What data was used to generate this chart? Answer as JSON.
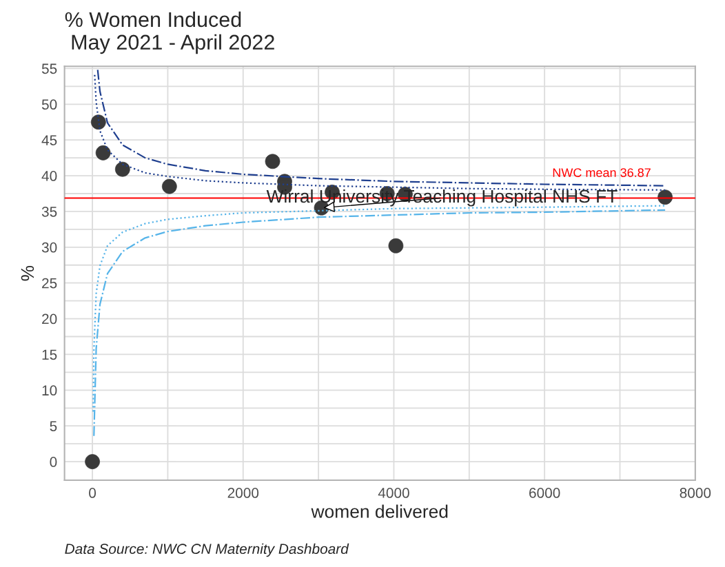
{
  "chart_data": {
    "type": "scatter",
    "title": "% Women Induced\n May 2021 - April 2022",
    "xlabel": "women delivered",
    "ylabel": "%",
    "xlim": [
      -370,
      8000
    ],
    "ylim": [
      -2.6,
      55.3
    ],
    "xticks": [
      0,
      2000,
      4000,
      6000,
      8000
    ],
    "yticks": [
      0,
      5,
      10,
      15,
      20,
      25,
      30,
      35,
      40,
      45,
      50,
      55
    ],
    "grid": true,
    "series": [
      {
        "type": "line",
        "color": "#1f3f8f",
        "line_style": "dashdot",
        "x": [
          70,
          100,
          200,
          400,
          700,
          1000,
          1500,
          2000,
          3000,
          4000,
          5000,
          6000,
          7600
        ],
        "values": [
          54.8,
          51.8,
          47.4,
          44.3,
          42.5,
          41.6,
          40.7,
          40.2,
          39.6,
          39.2,
          39.0,
          38.8,
          38.6
        ]
      },
      {
        "type": "line",
        "color": "#1f3f8f",
        "line_style": "dotted",
        "x": [
          30,
          50,
          100,
          200,
          400,
          700,
          1000,
          1500,
          2000,
          3000,
          4000,
          5000,
          6000,
          7600
        ],
        "values": [
          54.1,
          50.3,
          46.3,
          43.6,
          41.6,
          40.4,
          39.9,
          39.3,
          39.0,
          38.6,
          38.4,
          38.2,
          38.1,
          38.0
        ]
      },
      {
        "type": "line",
        "color": "#56b4e9",
        "line_style": "dotted",
        "x": [
          10,
          20,
          50,
          100,
          200,
          400,
          700,
          1000,
          1500,
          2000,
          3000,
          4000,
          5000,
          6000,
          7600
        ],
        "values": [
          7.0,
          15.8,
          23.5,
          27.4,
          30.2,
          32.1,
          33.3,
          33.9,
          34.4,
          34.8,
          35.1,
          35.4,
          35.5,
          35.6,
          35.8
        ]
      },
      {
        "type": "line",
        "color": "#56b4e9",
        "line_style": "dashdot",
        "x": [
          20,
          50,
          100,
          200,
          400,
          700,
          1000,
          1500,
          2000,
          3000,
          4000,
          5000,
          6000,
          7600
        ],
        "values": [
          3.6,
          15.8,
          22.0,
          26.3,
          29.4,
          31.3,
          32.2,
          33.0,
          33.5,
          34.2,
          34.5,
          34.8,
          34.9,
          35.2
        ]
      },
      {
        "color": "#3a3a3a",
        "marker": "circle",
        "x": [
          0,
          80,
          142,
          400,
          1022,
          2391,
          2551,
          2551,
          3040,
          3182,
          3911,
          4151,
          4027,
          7600
        ],
        "values": [
          0,
          47.5,
          43.2,
          40.9,
          38.5,
          42.0,
          39.2,
          38.4,
          35.5,
          37.7,
          37.5,
          37.4,
          30.2,
          37.0
        ]
      }
    ],
    "ref_lines": [
      {
        "axis": "y",
        "value": 36.87,
        "label": "NWC mean 36.87",
        "color": "#ff0000"
      }
    ],
    "annotations": [
      {
        "text": "Wirral University Teaching Hospital NHS FT",
        "x": 3040,
        "y": 35.5
      },
      "Data Source: NWC CN Maternity Dashboard"
    ]
  }
}
